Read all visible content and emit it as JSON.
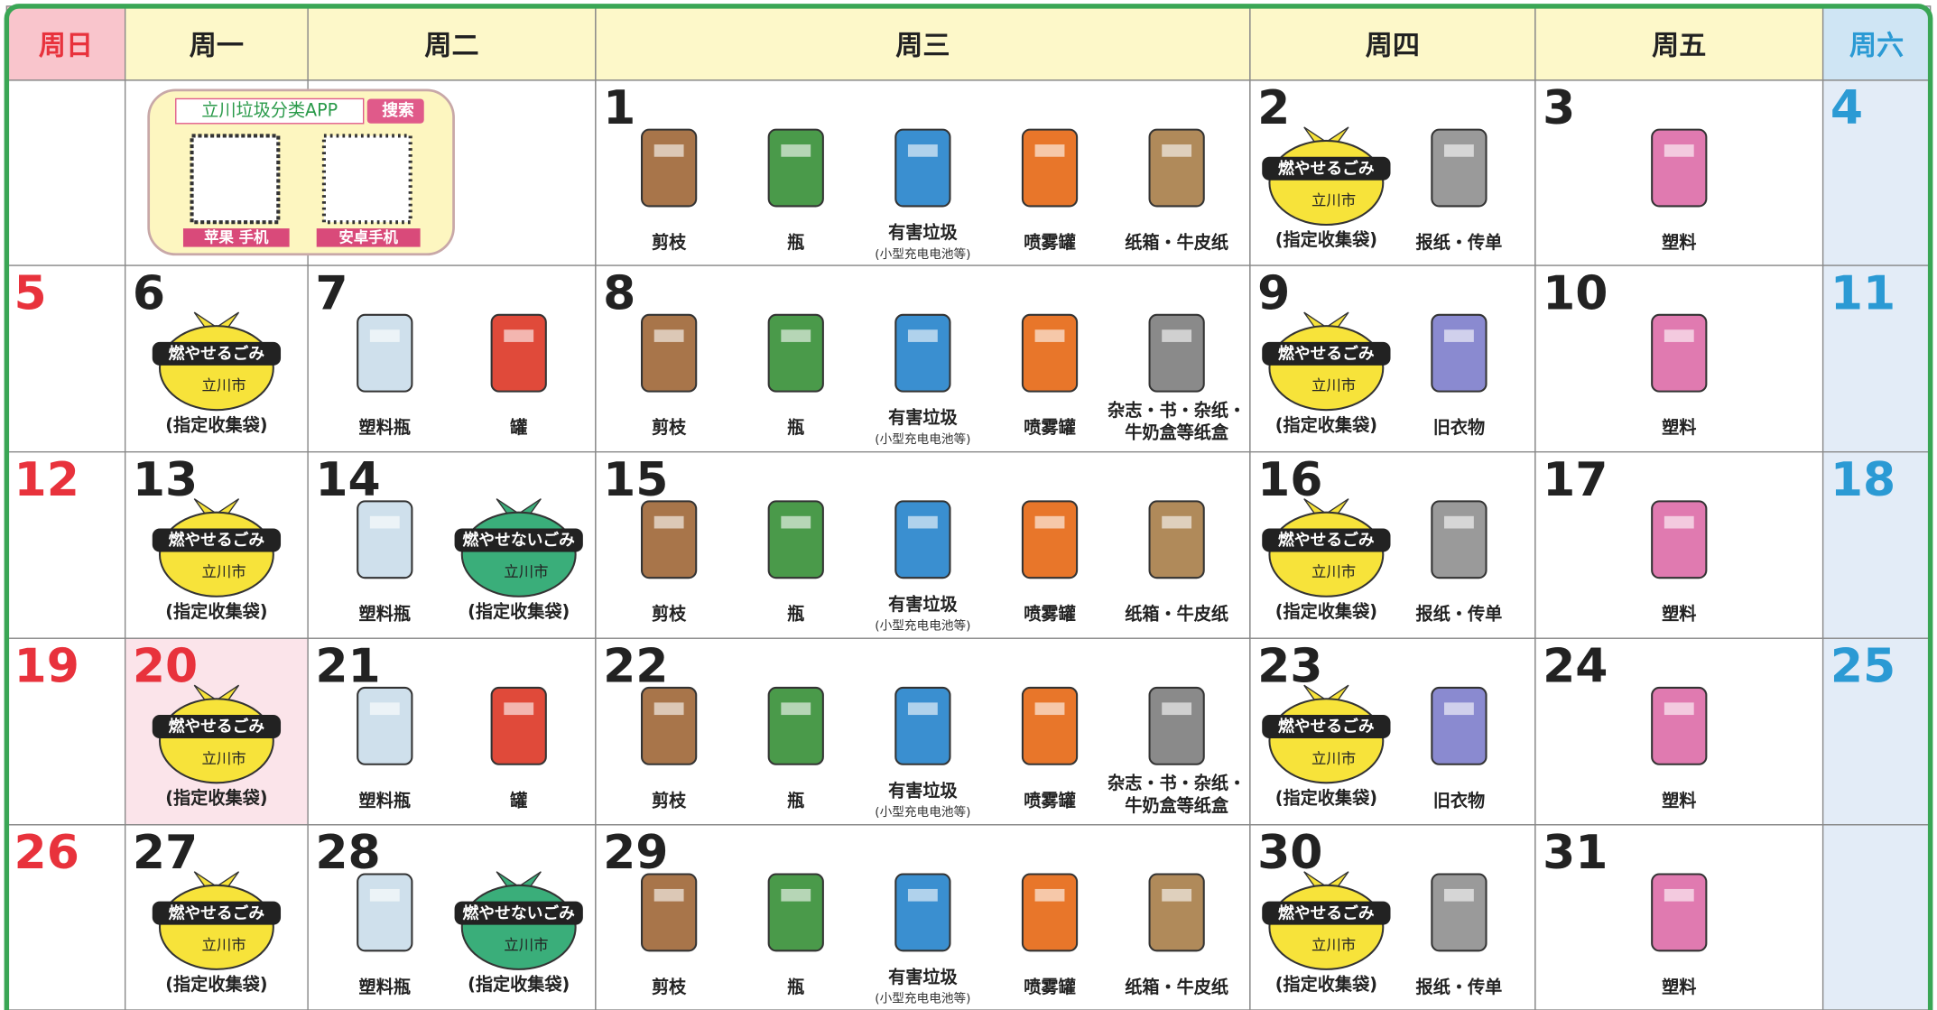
{
  "header": {
    "days": [
      "周日",
      "周一",
      "周二",
      "周三",
      "周四",
      "周五",
      "周六"
    ]
  },
  "app_box": {
    "title": "立川垃圾分类APP",
    "search": "搜索",
    "labels": [
      "苹果 手机",
      "安卓手机"
    ]
  },
  "weeks": [
    [
      {
        "date": null,
        "items": []
      },
      {
        "date": null,
        "items": []
      },
      {
        "date": null,
        "items": []
      },
      {
        "date": 1,
        "items": [
          {
            "label": "剪枝",
            "color": "#a8754a"
          },
          {
            "label": "瓶",
            "color": "#4a9a4a"
          },
          {
            "label": "有害垃圾",
            "note": "(小型充电电池等)",
            "color": "#3a8fd0"
          },
          {
            "label": "喷雾罐",
            "color": "#e8762a"
          },
          {
            "label": "纸箱・牛皮纸",
            "color": "#b08a5a"
          }
        ]
      },
      {
        "date": 2,
        "items": [
          {
            "bag": "燃やせるごみ",
            "city": "立川市",
            "label": "(指定收集袋)",
            "color": "#f7e33a"
          },
          {
            "label": "报纸・传单",
            "color": "#9a9a9a"
          }
        ]
      },
      {
        "date": 3,
        "items": [
          {
            "label": "塑料",
            "color": "#e07ab0"
          }
        ]
      },
      {
        "date": 4,
        "items": []
      }
    ],
    [
      {
        "date": 5,
        "items": []
      },
      {
        "date": 6,
        "items": [
          {
            "bag": "燃やせるごみ",
            "city": "立川市",
            "label": "(指定收集袋)",
            "color": "#f7e33a"
          }
        ]
      },
      {
        "date": 7,
        "items": [
          {
            "label": "塑料瓶",
            "color": "#cfe0ec"
          },
          {
            "label": "罐",
            "color": "#e04a3a"
          }
        ]
      },
      {
        "date": 8,
        "items": [
          {
            "label": "剪枝",
            "color": "#a8754a"
          },
          {
            "label": "瓶",
            "color": "#4a9a4a"
          },
          {
            "label": "有害垃圾",
            "note": "(小型充电电池等)",
            "color": "#3a8fd0"
          },
          {
            "label": "喷雾罐",
            "color": "#e8762a"
          },
          {
            "lines": [
              "杂志・书・杂纸・",
              "牛奶盒等纸盒"
            ],
            "color": "#8a8a8a"
          }
        ]
      },
      {
        "date": 9,
        "items": [
          {
            "bag": "燃やせるごみ",
            "city": "立川市",
            "label": "(指定收集袋)",
            "color": "#f7e33a"
          },
          {
            "label": "旧衣物",
            "color": "#8a8ad0"
          }
        ]
      },
      {
        "date": 10,
        "items": [
          {
            "label": "塑料",
            "color": "#e07ab0"
          }
        ]
      },
      {
        "date": 11,
        "items": []
      }
    ],
    [
      {
        "date": 12,
        "items": []
      },
      {
        "date": 13,
        "items": [
          {
            "bag": "燃やせるごみ",
            "city": "立川市",
            "label": "(指定收集袋)",
            "color": "#f7e33a"
          }
        ]
      },
      {
        "date": 14,
        "items": [
          {
            "label": "塑料瓶",
            "color": "#cfe0ec"
          },
          {
            "bag": "燃やせないごみ",
            "city": "立川市",
            "label": "(指定收集袋)",
            "color": "#3aae7a"
          }
        ]
      },
      {
        "date": 15,
        "items": [
          {
            "label": "剪枝",
            "color": "#a8754a"
          },
          {
            "label": "瓶",
            "color": "#4a9a4a"
          },
          {
            "label": "有害垃圾",
            "note": "(小型充电电池等)",
            "color": "#3a8fd0"
          },
          {
            "label": "喷雾罐",
            "color": "#e8762a"
          },
          {
            "label": "纸箱・牛皮纸",
            "color": "#b08a5a"
          }
        ]
      },
      {
        "date": 16,
        "items": [
          {
            "bag": "燃やせるごみ",
            "city": "立川市",
            "label": "(指定收集袋)",
            "color": "#f7e33a"
          },
          {
            "label": "报纸・传单",
            "color": "#9a9a9a"
          }
        ]
      },
      {
        "date": 17,
        "items": [
          {
            "label": "塑料",
            "color": "#e07ab0"
          }
        ]
      },
      {
        "date": 18,
        "items": []
      }
    ],
    [
      {
        "date": 19,
        "items": []
      },
      {
        "date": 20,
        "holiday_color": "#fbe4ea",
        "items": [
          {
            "bag": "燃やせるごみ",
            "city": "立川市",
            "label": "(指定收集袋)",
            "color": "#f7e33a"
          }
        ]
      },
      {
        "date": 21,
        "items": [
          {
            "label": "塑料瓶",
            "color": "#cfe0ec"
          },
          {
            "label": "罐",
            "color": "#e04a3a"
          }
        ]
      },
      {
        "date": 22,
        "items": [
          {
            "label": "剪枝",
            "color": "#a8754a"
          },
          {
            "label": "瓶",
            "color": "#4a9a4a"
          },
          {
            "label": "有害垃圾",
            "note": "(小型充电电池等)",
            "color": "#3a8fd0"
          },
          {
            "label": "喷雾罐",
            "color": "#e8762a"
          },
          {
            "lines": [
              "杂志・书・杂纸・",
              "牛奶盒等纸盒"
            ],
            "color": "#8a8a8a"
          }
        ]
      },
      {
        "date": 23,
        "items": [
          {
            "bag": "燃やせるごみ",
            "city": "立川市",
            "label": "(指定收集袋)",
            "color": "#f7e33a"
          },
          {
            "label": "旧衣物",
            "color": "#8a8ad0"
          }
        ]
      },
      {
        "date": 24,
        "items": [
          {
            "label": "塑料",
            "color": "#e07ab0"
          }
        ]
      },
      {
        "date": 25,
        "items": []
      }
    ],
    [
      {
        "date": 26,
        "items": []
      },
      {
        "date": 27,
        "items": [
          {
            "bag": "燃やせるごみ",
            "city": "立川市",
            "label": "(指定收集袋)",
            "color": "#f7e33a"
          }
        ]
      },
      {
        "date": 28,
        "items": [
          {
            "label": "塑料瓶",
            "color": "#cfe0ec"
          },
          {
            "bag": "燃やせないごみ",
            "city": "立川市",
            "label": "(指定收集袋)",
            "color": "#3aae7a"
          }
        ]
      },
      {
        "date": 29,
        "items": [
          {
            "label": "剪枝",
            "color": "#a8754a"
          },
          {
            "label": "瓶",
            "color": "#4a9a4a"
          },
          {
            "label": "有害垃圾",
            "note": "(小型充电电池等)",
            "color": "#3a8fd0"
          },
          {
            "label": "喷雾罐",
            "color": "#e8762a"
          },
          {
            "label": "纸箱・牛皮纸",
            "color": "#b08a5a"
          }
        ]
      },
      {
        "date": 30,
        "items": [
          {
            "bag": "燃やせるごみ",
            "city": "立川市",
            "label": "(指定收集袋)",
            "color": "#f7e33a"
          },
          {
            "label": "报纸・传单",
            "color": "#9a9a9a"
          }
        ]
      },
      {
        "date": 31,
        "items": [
          {
            "label": "塑料",
            "color": "#e07ab0"
          }
        ]
      },
      {
        "date": null,
        "items": []
      }
    ]
  ]
}
